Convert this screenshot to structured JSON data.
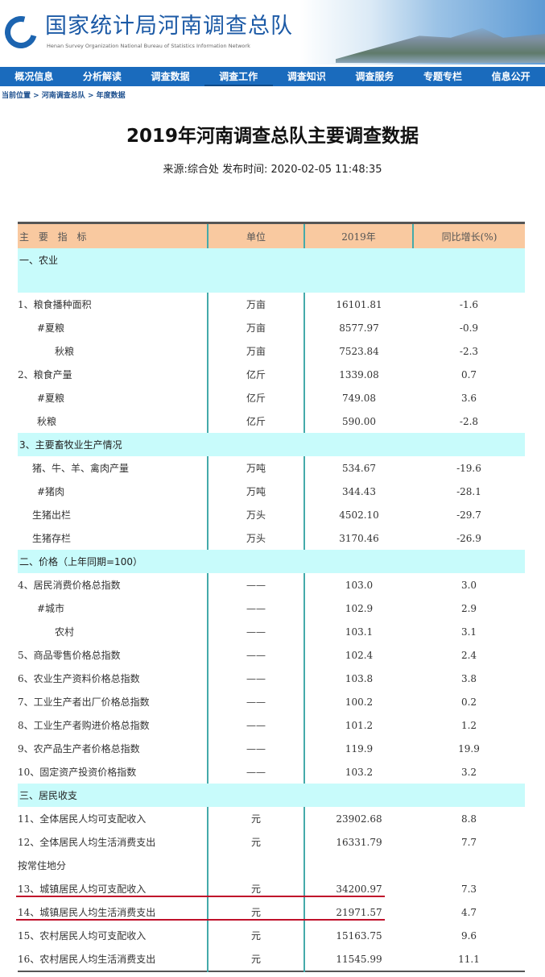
{
  "header": {
    "title": "国家统计局河南调查总队",
    "subtitle": "Henan Survey Organization National Bureau of Statistics Information Network"
  },
  "nav": [
    "概况信息",
    "分析解读",
    "调查数据",
    "调查工作",
    "调查知识",
    "调查服务",
    "专题专栏",
    "信息公开"
  ],
  "active_nav": "调查工作",
  "breadcrumb": "当前位置 > 河南调查总队 > 年度数据",
  "page_title": "2019年河南调查总队主要调查数据",
  "meta": "来源:综合处 发布时间: 2020-02-05 11:48:35",
  "table": {
    "headers": [
      "主 要 指 标",
      "单位",
      "2019年",
      "同比增长(%)"
    ],
    "rows": [
      {
        "type": "section",
        "tall": true,
        "label": "一、农业"
      },
      {
        "label": "1、粮食播种面积",
        "unit": "万亩",
        "value": "16101.81",
        "growth": "-1.6",
        "indent": 0
      },
      {
        "label": "#夏粮",
        "unit": "万亩",
        "value": "8577.97",
        "growth": "-0.9",
        "indent": 1
      },
      {
        "label": "秋粮",
        "unit": "万亩",
        "value": "7523.84",
        "growth": "-2.3",
        "indent": 2
      },
      {
        "label": "2、粮食产量",
        "unit": "亿斤",
        "value": "1339.08",
        "growth": "0.7",
        "indent": 0
      },
      {
        "label": "#夏粮",
        "unit": "亿斤",
        "value": "749.08",
        "growth": "3.6",
        "indent": 1
      },
      {
        "label": "秋粮",
        "unit": "亿斤",
        "value": "590.00",
        "growth": "-2.8",
        "indent": 1
      },
      {
        "type": "section",
        "label": "3、主要畜牧业生产情况"
      },
      {
        "label": "猪、牛、羊、禽肉产量",
        "unit": "万吨",
        "value": "534.67",
        "growth": "-19.6",
        "indent": 3
      },
      {
        "label": "#猪肉",
        "unit": "万吨",
        "value": "344.43",
        "growth": "-28.1",
        "indent": 1
      },
      {
        "label": "生猪出栏",
        "unit": "万头",
        "value": "4502.10",
        "growth": "-29.7",
        "indent": 3
      },
      {
        "label": "生猪存栏",
        "unit": "万头",
        "value": "3170.46",
        "growth": "-26.9",
        "indent": 3
      },
      {
        "type": "section",
        "label": "二、价格（上年同期=100）"
      },
      {
        "label": "4、居民消费价格总指数",
        "unit": "——",
        "value": "103.0",
        "growth": "3.0",
        "indent": 0
      },
      {
        "label": "#城市",
        "unit": "——",
        "value": "102.9",
        "growth": "2.9",
        "indent": 1
      },
      {
        "label": "农村",
        "unit": "——",
        "value": "103.1",
        "growth": "3.1",
        "indent": 2
      },
      {
        "label": "5、商品零售价格总指数",
        "unit": "——",
        "value": "102.4",
        "growth": "2.4",
        "indent": 0
      },
      {
        "label": "6、农业生产资料价格总指数",
        "unit": "——",
        "value": "103.8",
        "growth": "3.8",
        "indent": 0
      },
      {
        "label": "7、工业生产者出厂价格总指数",
        "unit": "——",
        "value": "100.2",
        "growth": "0.2",
        "indent": 0
      },
      {
        "label": "8、工业生产者购进价格总指数",
        "unit": "——",
        "value": "101.2",
        "growth": "1.2",
        "indent": 0
      },
      {
        "label": "9、农产品生产者价格总指数",
        "unit": "——",
        "value": "119.9",
        "growth": "19.9",
        "indent": 0
      },
      {
        "label": "10、固定资产投资价格指数",
        "unit": "——",
        "value": "103.2",
        "growth": "3.2",
        "indent": 0
      },
      {
        "type": "section",
        "label": "三、居民收支"
      },
      {
        "label": "11、全体居民人均可支配收入",
        "unit": "元",
        "value": "23902.68",
        "growth": "8.8",
        "indent": 0
      },
      {
        "label": "12、全体居民人均生活消费支出",
        "unit": "元",
        "value": "16331.79",
        "growth": "7.7",
        "indent": 0
      },
      {
        "label": "按常住地分",
        "unit": "",
        "value": "",
        "growth": "",
        "indent": 0
      },
      {
        "label": "13、城镇居民人均可支配收入",
        "unit": "元",
        "value": "34200.97",
        "growth": "7.3",
        "indent": 0
      },
      {
        "label": "14、城镇居民人均生活消费支出",
        "unit": "元",
        "value": "21971.57",
        "growth": "4.7",
        "indent": 0
      },
      {
        "label": "15、农村居民人均可支配收入",
        "unit": "元",
        "value": "15163.75",
        "growth": "9.6",
        "indent": 0
      },
      {
        "label": "16、农村居民人均生活消费支出",
        "unit": "元",
        "value": "11545.99",
        "growth": "11.1",
        "indent": 0
      }
    ]
  },
  "highlight_color": "#c0102a"
}
